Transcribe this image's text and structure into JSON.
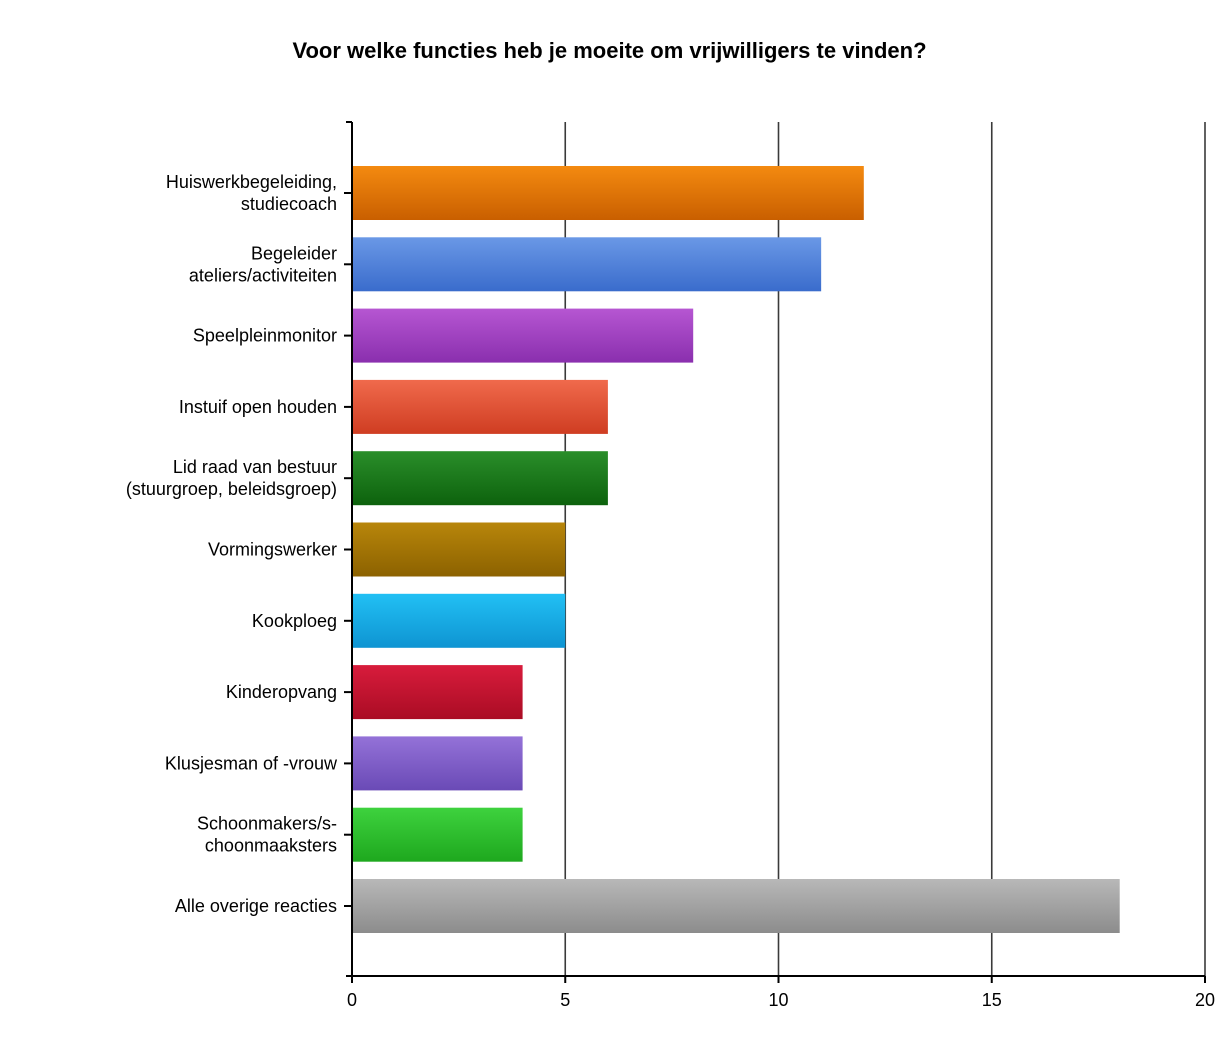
{
  "chart_data": {
    "type": "bar",
    "orientation": "horizontal",
    "title": "Voor welke functies heb je moeite om vrijwilligers te vinden?",
    "xlabel": "",
    "ylabel": "",
    "categories": [
      "Huiswerkbegeleiding, studiecoach",
      "Begeleider ateliers/activiteiten",
      "Speelpleinmonitor",
      "Instuif open houden",
      "Lid raad van bestuur (stuurgroep, beleidsgroep)",
      "Vormingswerker",
      "Kookploeg",
      "Kinderopvang",
      "Klusjesman of -vrouw",
      "Schoonmakers/s-choonmaaksters",
      "Alle overige reacties"
    ],
    "category_lines": [
      [
        "Huiswerkbegeleiding,",
        "studiecoach"
      ],
      [
        "Begeleider",
        "ateliers/activiteiten"
      ],
      [
        "Speelpleinmonitor"
      ],
      [
        "Instuif open houden"
      ],
      [
        "Lid raad van bestuur",
        "(stuurgroep, beleidsgroep)"
      ],
      [
        "Vormingswerker"
      ],
      [
        "Kookploeg"
      ],
      [
        "Kinderopvang"
      ],
      [
        "Klusjesman of -vrouw"
      ],
      [
        "Schoonmakers/s-",
        "choonmaaksters"
      ],
      [
        "Alle overige reacties"
      ]
    ],
    "values": [
      12,
      11,
      8,
      6,
      6,
      5,
      5,
      4,
      4,
      4,
      18
    ],
    "colors": [
      [
        "#f48a10",
        "#c95f00"
      ],
      [
        "#6a98e6",
        "#3a6ccc"
      ],
      [
        "#b656d2",
        "#8a2fae"
      ],
      [
        "#f06a4c",
        "#cf3d22"
      ],
      [
        "#2a8e2a",
        "#0d620d"
      ],
      [
        "#b8860b",
        "#8c6200"
      ],
      [
        "#22c0f4",
        "#0e94d2"
      ],
      [
        "#d81c3c",
        "#aa0c24"
      ],
      [
        "#9472d8",
        "#6a4ab6"
      ],
      [
        "#3ed23e",
        "#1ea81e"
      ],
      [
        "#b8b8b8",
        "#8c8c8c"
      ]
    ],
    "xlim": [
      0,
      20
    ],
    "xticks": [
      0,
      5,
      10,
      15,
      20
    ],
    "grid": true,
    "legend": "none"
  }
}
